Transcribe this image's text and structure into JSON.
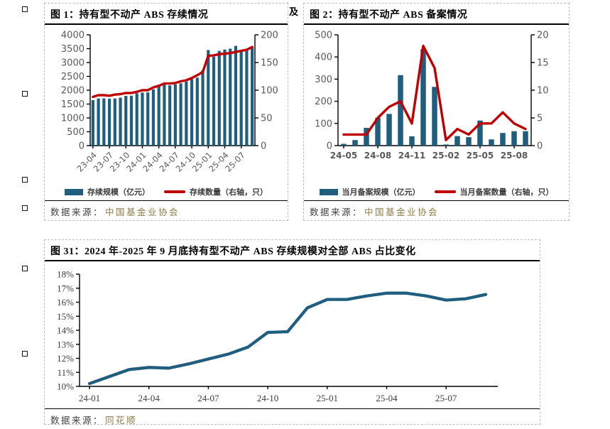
{
  "connector": "及",
  "source_prefix": "数据来源：",
  "sources": [
    "中国基金业协会",
    "中国基金业协会",
    "同花顺"
  ],
  "colors": {
    "bar_teal": "#1f5e7f",
    "line_red": "#c00000",
    "tick_gray": "#595959",
    "source_gold": "#8d7b45"
  },
  "chart_data": [
    {
      "type": "bar+line",
      "title": "图 1：持有型不动产 ABS 存续情况",
      "categories": [
        "23-04",
        "23-05",
        "23-06",
        "23-07",
        "23-08",
        "23-09",
        "23-10",
        "23-11",
        "23-12",
        "24-01",
        "24-02",
        "24-03",
        "24-04",
        "24-05",
        "24-06",
        "24-07",
        "24-08",
        "24-09",
        "24-10",
        "24-11",
        "24-12",
        "25-01",
        "25-02",
        "25-03",
        "25-04",
        "25-05",
        "25-06",
        "25-07",
        "25-08",
        "25-09"
      ],
      "series": [
        {
          "name": "存续规模（亿元）",
          "type": "bar",
          "axis": "left",
          "color": "#1f5e7f",
          "values": [
            1640,
            1700,
            1705,
            1690,
            1700,
            1730,
            1795,
            1800,
            1890,
            1915,
            1920,
            2030,
            2170,
            2200,
            2175,
            2210,
            2250,
            2310,
            2400,
            2455,
            2720,
            3450,
            3210,
            3420,
            3470,
            3500,
            3600,
            3400,
            3470,
            3550
          ]
        },
        {
          "name": "存续数量（右轴，只）",
          "type": "line",
          "axis": "right",
          "color": "#c00000",
          "values": [
            88,
            91,
            91,
            90,
            92,
            93,
            95,
            95,
            97,
            100,
            100,
            105,
            108,
            112,
            112,
            113,
            116,
            118,
            122,
            127,
            133,
            162,
            163,
            165,
            166,
            167,
            169,
            171,
            173,
            178
          ]
        }
      ],
      "left_axis": {
        "min": 0,
        "max": 4000,
        "step": 500
      },
      "right_axis": {
        "min": 0,
        "max": 200,
        "step": 50
      },
      "x_label_every": 3,
      "grid": false,
      "legend_position": "bottom"
    },
    {
      "type": "bar+line",
      "title": "图 2：持有型不动产 ABS 备案情况",
      "categories": [
        "24-05",
        "24-06",
        "24-07",
        "24-08",
        "24-09",
        "24-10",
        "24-11",
        "24-12",
        "25-01",
        "25-02",
        "25-03",
        "25-04",
        "25-05",
        "25-06",
        "25-07",
        "25-08",
        "25-09"
      ],
      "series": [
        {
          "name": "当月备案规模（亿元）",
          "type": "bar",
          "axis": "left",
          "color": "#1f5e7f",
          "values": [
            8,
            25,
            80,
            125,
            143,
            318,
            42,
            435,
            265,
            5,
            43,
            38,
            113,
            28,
            57,
            65,
            65
          ]
        },
        {
          "name": "当月备案数量（右轴，只）",
          "type": "line",
          "axis": "right",
          "color": "#c00000",
          "values": [
            2,
            2,
            2,
            5,
            7,
            8,
            4,
            18,
            14,
            1,
            3,
            2,
            4,
            4,
            6,
            4,
            3
          ]
        }
      ],
      "left_axis": {
        "min": 0,
        "max": 500,
        "step": 100
      },
      "right_axis": {
        "min": 0,
        "max": 20,
        "step": 5
      },
      "x_label_every": 3,
      "grid": false,
      "legend_position": "bottom"
    },
    {
      "type": "line",
      "title": "图 31：2024 年-2025 年 9 月底持有型不动产 ABS 存续规模对全部 ABS 占比变化",
      "categories": [
        "24-01",
        "24-02",
        "24-03",
        "24-04",
        "24-05",
        "24-06",
        "24-07",
        "24-08",
        "24-09",
        "24-10",
        "24-11",
        "24-12",
        "25-01",
        "25-02",
        "25-03",
        "25-04",
        "25-05",
        "25-06",
        "25-07",
        "25-08",
        "25-09"
      ],
      "series": [
        {
          "name": "持有型不动产ABS存续规模对全部ABS占比",
          "type": "line",
          "axis": "left",
          "color": "#1f5e7f",
          "values": [
            10.2,
            10.7,
            11.2,
            11.35,
            11.3,
            11.6,
            11.95,
            12.3,
            12.8,
            13.85,
            13.9,
            15.6,
            16.2,
            16.2,
            16.45,
            16.65,
            16.65,
            16.45,
            16.15,
            16.25,
            16.55
          ]
        }
      ],
      "left_axis": {
        "min": 10,
        "max": 18,
        "step": 1,
        "suffix": "%"
      },
      "x_label_every": 3,
      "grid": false,
      "legend_position": "none"
    }
  ]
}
